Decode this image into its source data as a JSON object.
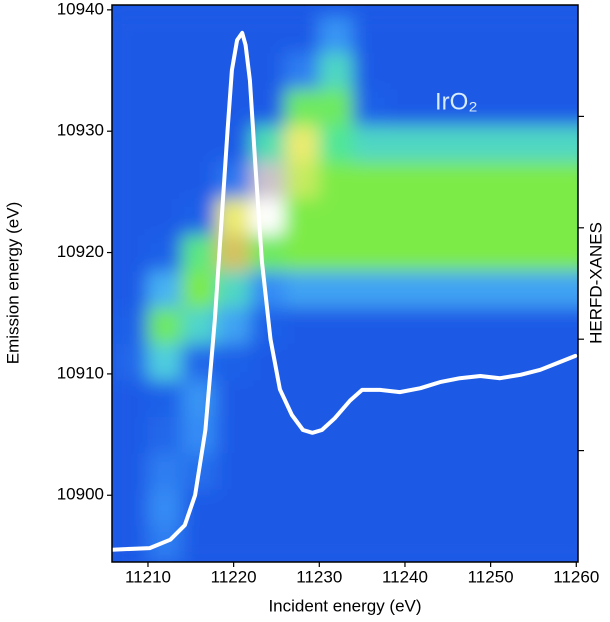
{
  "chart_data": {
    "type": "heatmap",
    "xlabel": "Incident energy (eV)",
    "ylabel": "Emission energy (eV)",
    "annotation": "IrO₂",
    "xlim": [
      11205.8,
      11260.2
    ],
    "ylim": [
      10894.5,
      10940.4
    ],
    "xticks": [
      11210,
      11220,
      11230,
      11240,
      11250,
      11260
    ],
    "yticks": [
      10900,
      10910,
      10920,
      10930,
      10940
    ],
    "y2lim": [
      0,
      1
    ],
    "y2ticks": [
      0.2,
      0.4,
      0.6,
      0.8
    ],
    "x": [
      11208,
      11212,
      11216,
      11220,
      11224,
      11228,
      11232,
      11236,
      11240,
      11244,
      11248,
      11252,
      11256,
      11260
    ],
    "y": [
      10896,
      10899,
      10902,
      10905,
      10908,
      10911,
      10914,
      10917,
      10920,
      10923,
      10926,
      10929,
      10932,
      10935,
      10938
    ],
    "z": [
      [
        0.05,
        0.1,
        0.05,
        0.05,
        0.05,
        0.05,
        0.05,
        0.05,
        0.05,
        0.05,
        0.05,
        0.05,
        0.05,
        0.05
      ],
      [
        0.05,
        0.12,
        0.05,
        0.05,
        0.05,
        0.05,
        0.05,
        0.05,
        0.05,
        0.05,
        0.05,
        0.05,
        0.05,
        0.05
      ],
      [
        0.05,
        0.1,
        0.08,
        0.05,
        0.05,
        0.05,
        0.05,
        0.05,
        0.05,
        0.05,
        0.05,
        0.05,
        0.05,
        0.05
      ],
      [
        0.05,
        0.07,
        0.12,
        0.05,
        0.05,
        0.05,
        0.05,
        0.05,
        0.05,
        0.05,
        0.05,
        0.05,
        0.05,
        0.05
      ],
      [
        0.05,
        0.06,
        0.13,
        0.05,
        0.05,
        0.05,
        0.05,
        0.05,
        0.05,
        0.05,
        0.05,
        0.05,
        0.05,
        0.05
      ],
      [
        0.07,
        0.22,
        0.07,
        0.06,
        0.05,
        0.05,
        0.05,
        0.05,
        0.05,
        0.05,
        0.05,
        0.05,
        0.05,
        0.05
      ],
      [
        0.06,
        0.4,
        0.24,
        0.15,
        0.06,
        0.05,
        0.05,
        0.05,
        0.05,
        0.05,
        0.05,
        0.05,
        0.05,
        0.05
      ],
      [
        0.05,
        0.17,
        0.45,
        0.25,
        0.12,
        0.15,
        0.15,
        0.15,
        0.15,
        0.15,
        0.15,
        0.15,
        0.15,
        0.15
      ],
      [
        0.05,
        0.06,
        0.34,
        0.64,
        0.4,
        0.45,
        0.45,
        0.45,
        0.45,
        0.45,
        0.45,
        0.45,
        0.45,
        0.45
      ],
      [
        0.05,
        0.05,
        0.06,
        0.6,
        1.0,
        0.45,
        0.45,
        0.45,
        0.45,
        0.45,
        0.45,
        0.45,
        0.45,
        0.45
      ],
      [
        0.05,
        0.05,
        0.05,
        0.09,
        0.95,
        0.55,
        0.45,
        0.45,
        0.45,
        0.45,
        0.45,
        0.45,
        0.45,
        0.45
      ],
      [
        0.05,
        0.05,
        0.05,
        0.05,
        0.27,
        0.6,
        0.3,
        0.25,
        0.25,
        0.25,
        0.25,
        0.25,
        0.25,
        0.25
      ],
      [
        0.05,
        0.05,
        0.05,
        0.05,
        0.05,
        0.4,
        0.4,
        0.06,
        0.05,
        0.05,
        0.05,
        0.05,
        0.05,
        0.05
      ],
      [
        0.05,
        0.05,
        0.05,
        0.05,
        0.05,
        0.1,
        0.25,
        0.05,
        0.05,
        0.05,
        0.05,
        0.05,
        0.05,
        0.05
      ],
      [
        0.05,
        0.05,
        0.05,
        0.05,
        0.05,
        0.05,
        0.13,
        0.05,
        0.05,
        0.05,
        0.05,
        0.05,
        0.05,
        0.05
      ]
    ],
    "series": [
      {
        "name": "HERFD-XANES",
        "color": "#ffffff",
        "axis": "y2",
        "x": [
          11205.8,
          11210.2,
          11212.6,
          11214.3,
          11215.5,
          11216.7,
          11217.8,
          11218.6,
          11219.3,
          11219.8,
          11220.4,
          11221.0,
          11221.4,
          11221.9,
          11222.5,
          11223.3,
          11224.3,
          11225.4,
          11226.8,
          11228.1,
          11229.2,
          11230.3,
          11231.8,
          11233.6,
          11235.0,
          11237.1,
          11239.4,
          11241.8,
          11244.1,
          11246.4,
          11248.8,
          11251.1,
          11253.5,
          11255.8,
          11258.1,
          11259.9
        ],
        "values": [
          0.022,
          0.025,
          0.04,
          0.066,
          0.12,
          0.237,
          0.434,
          0.614,
          0.776,
          0.883,
          0.937,
          0.95,
          0.928,
          0.865,
          0.72,
          0.54,
          0.4,
          0.31,
          0.264,
          0.237,
          0.232,
          0.237,
          0.258,
          0.29,
          0.309,
          0.309,
          0.305,
          0.312,
          0.323,
          0.33,
          0.334,
          0.33,
          0.336,
          0.345,
          0.359,
          0.37
        ]
      }
    ]
  }
}
